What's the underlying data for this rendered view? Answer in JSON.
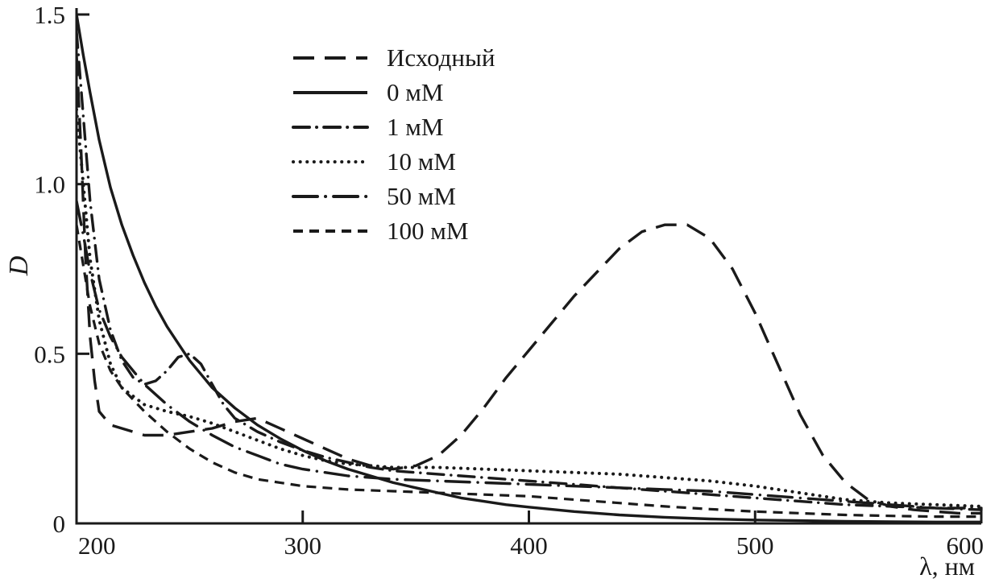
{
  "figure": {
    "background": "#ffffff",
    "line_color": "#1a1a1a"
  },
  "chart_data": {
    "type": "line",
    "title": "",
    "xlabel": "λ, нм",
    "ylabel": "D",
    "xlim": [
      200,
      600
    ],
    "ylim": [
      0,
      1.5
    ],
    "xticks": [
      200,
      300,
      400,
      500,
      600
    ],
    "yticks": [
      0,
      0.5,
      1.0,
      1.5
    ],
    "ytick_labels": [
      "0",
      "0.5",
      "1.0",
      "1.5"
    ],
    "grid": false,
    "legend_position": "top-center-inside",
    "series": [
      {
        "name": "Исходный",
        "line_style": "long-dash",
        "dash": [
          26,
          13
        ],
        "cap": "butt",
        "width": 3.4,
        "x": [
          200,
          202,
          204,
          206,
          208,
          210,
          215,
          220,
          230,
          240,
          250,
          260,
          270,
          280,
          290,
          300,
          310,
          320,
          330,
          340,
          350,
          360,
          370,
          380,
          390,
          400,
          410,
          420,
          430,
          440,
          450,
          460,
          470,
          480,
          490,
          500,
          510,
          520,
          530,
          540,
          550,
          560,
          570,
          580,
          590,
          600
        ],
        "y": [
          1.38,
          1.1,
          0.78,
          0.55,
          0.42,
          0.33,
          0.29,
          0.28,
          0.26,
          0.26,
          0.27,
          0.28,
          0.3,
          0.31,
          0.28,
          0.25,
          0.22,
          0.19,
          0.17,
          0.16,
          0.17,
          0.2,
          0.26,
          0.34,
          0.43,
          0.51,
          0.59,
          0.67,
          0.74,
          0.81,
          0.86,
          0.88,
          0.88,
          0.84,
          0.75,
          0.62,
          0.47,
          0.32,
          0.2,
          0.12,
          0.07,
          0.05,
          0.04,
          0.035,
          0.03,
          0.03
        ]
      },
      {
        "name": "0 мМ",
        "line_style": "solid",
        "dash": [],
        "cap": "butt",
        "width": 3.4,
        "x": [
          200,
          203,
          206,
          210,
          215,
          220,
          225,
          230,
          235,
          240,
          245,
          250,
          260,
          270,
          280,
          290,
          300,
          310,
          320,
          330,
          340,
          350,
          360,
          370,
          380,
          390,
          400,
          420,
          440,
          460,
          480,
          500,
          520,
          540,
          560,
          580,
          600
        ],
        "y": [
          1.5,
          1.38,
          1.27,
          1.13,
          0.99,
          0.88,
          0.79,
          0.71,
          0.64,
          0.58,
          0.53,
          0.48,
          0.4,
          0.34,
          0.29,
          0.25,
          0.215,
          0.185,
          0.16,
          0.14,
          0.12,
          0.105,
          0.09,
          0.075,
          0.065,
          0.055,
          0.048,
          0.035,
          0.025,
          0.018,
          0.013,
          0.01,
          0.008,
          0.006,
          0.005,
          0.004,
          0.004
        ]
      },
      {
        "name": "1 мМ",
        "line_style": "dash-dot",
        "dash": [
          20,
          9,
          0.1,
          9
        ],
        "cap": "round",
        "width": 3.4,
        "x": [
          200,
          203,
          206,
          210,
          215,
          220,
          225,
          230,
          235,
          240,
          245,
          250,
          255,
          260,
          265,
          270,
          280,
          290,
          300,
          310,
          320,
          330,
          340,
          350,
          360,
          380,
          400,
          420,
          440,
          460,
          480,
          500,
          520,
          540,
          560,
          580,
          600
        ],
        "y": [
          1.45,
          1.2,
          0.95,
          0.72,
          0.57,
          0.48,
          0.43,
          0.41,
          0.42,
          0.45,
          0.49,
          0.5,
          0.47,
          0.41,
          0.35,
          0.31,
          0.27,
          0.24,
          0.215,
          0.195,
          0.18,
          0.165,
          0.155,
          0.15,
          0.145,
          0.135,
          0.125,
          0.115,
          0.105,
          0.095,
          0.085,
          0.075,
          0.065,
          0.055,
          0.05,
          0.045,
          0.045
        ]
      },
      {
        "name": "10 мМ",
        "line_style": "dotted",
        "dash": [
          0.1,
          8.5
        ],
        "cap": "round",
        "width": 4,
        "x": [
          200,
          203,
          206,
          210,
          215,
          220,
          230,
          240,
          250,
          260,
          270,
          280,
          290,
          300,
          310,
          320,
          330,
          340,
          350,
          360,
          380,
          400,
          420,
          440,
          460,
          480,
          500,
          520,
          540,
          560,
          580,
          600
        ],
        "y": [
          1.22,
          1.0,
          0.78,
          0.6,
          0.47,
          0.4,
          0.35,
          0.33,
          0.315,
          0.295,
          0.27,
          0.245,
          0.22,
          0.2,
          0.185,
          0.175,
          0.17,
          0.165,
          0.165,
          0.165,
          0.16,
          0.155,
          0.15,
          0.145,
          0.135,
          0.125,
          0.11,
          0.09,
          0.07,
          0.06,
          0.055,
          0.05
        ]
      },
      {
        "name": "50 мМ",
        "line_style": "long-dash-dot",
        "dash": [
          30,
          10,
          0.1,
          10
        ],
        "cap": "round",
        "width": 3.4,
        "x": [
          200,
          203,
          206,
          210,
          215,
          220,
          230,
          240,
          250,
          260,
          270,
          280,
          290,
          300,
          320,
          340,
          360,
          380,
          400,
          420,
          440,
          460,
          480,
          500,
          520,
          540,
          560,
          580,
          600
        ],
        "y": [
          0.95,
          0.85,
          0.74,
          0.63,
          0.55,
          0.49,
          0.41,
          0.35,
          0.3,
          0.26,
          0.225,
          0.2,
          0.175,
          0.16,
          0.14,
          0.13,
          0.125,
          0.12,
          0.115,
          0.11,
          0.105,
          0.1,
          0.095,
          0.085,
          0.075,
          0.065,
          0.055,
          0.045,
          0.04
        ]
      },
      {
        "name": "100 мМ",
        "line_style": "short-dash",
        "dash": [
          12,
          8
        ],
        "cap": "butt",
        "width": 3.2,
        "x": [
          200,
          203,
          206,
          210,
          215,
          220,
          230,
          240,
          250,
          260,
          270,
          280,
          290,
          300,
          310,
          320,
          340,
          360,
          380,
          400,
          420,
          440,
          460,
          480,
          500,
          520,
          540,
          560,
          580,
          600
        ],
        "y": [
          0.88,
          0.76,
          0.64,
          0.53,
          0.45,
          0.4,
          0.33,
          0.27,
          0.22,
          0.18,
          0.15,
          0.13,
          0.12,
          0.11,
          0.105,
          0.1,
          0.095,
          0.09,
          0.085,
          0.08,
          0.07,
          0.06,
          0.05,
          0.042,
          0.035,
          0.03,
          0.025,
          0.022,
          0.02,
          0.02
        ]
      }
    ]
  }
}
